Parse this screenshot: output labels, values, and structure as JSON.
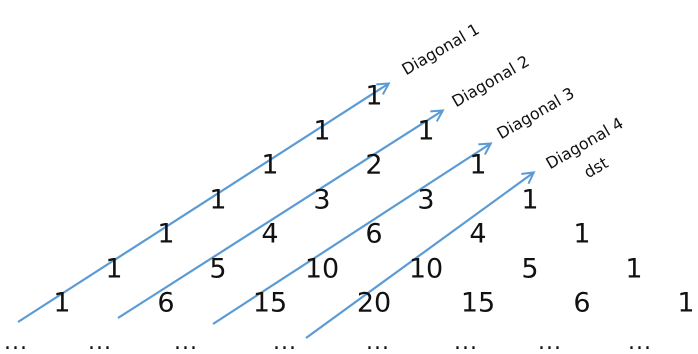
{
  "title_fragment": "",
  "accent_color": "#5b9bd5",
  "triangle_rows": [
    [
      "1"
    ],
    [
      "1",
      "1"
    ],
    [
      "1",
      "2",
      "1"
    ],
    [
      "1",
      "3",
      "3",
      "1"
    ],
    [
      "1",
      "4",
      "6",
      "4",
      "1"
    ],
    [
      "1",
      "5",
      "10",
      "10",
      "5",
      "1"
    ],
    [
      "1",
      "6",
      "15",
      "20",
      "15",
      "6",
      "1"
    ]
  ],
  "ellipsis": [
    "...",
    "...",
    "...",
    "...",
    "...",
    "...",
    "...",
    "..."
  ],
  "diagonal_labels": [
    "Diagonal 1",
    "Diagonal 2",
    "Diagonal 3",
    "Diagonal 4"
  ],
  "extra_label": "dst"
}
